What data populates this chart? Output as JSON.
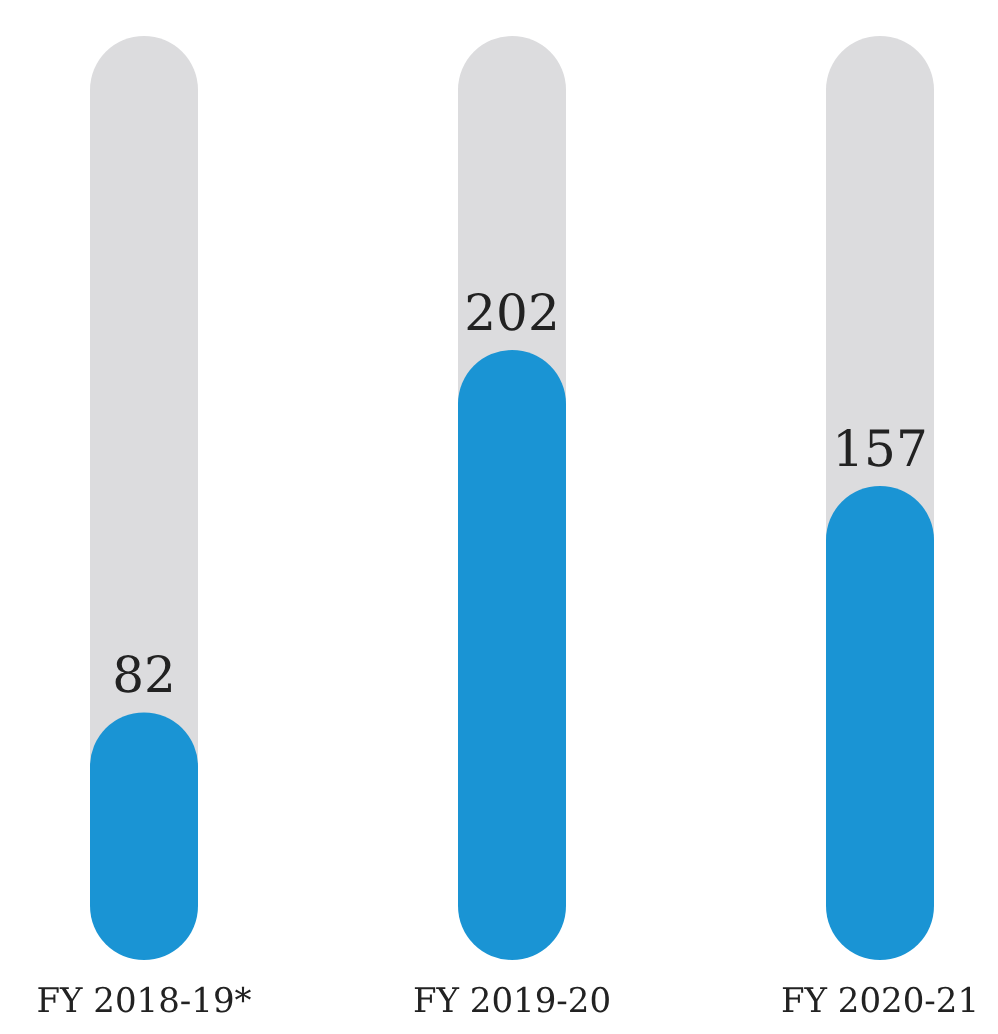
{
  "chart_data": {
    "type": "bar",
    "categories": [
      "FY 2018-19*",
      "FY 2019-20",
      "FY 2020-21"
    ],
    "values": [
      82,
      202,
      157
    ],
    "color": "#1a94d4",
    "data_labels": true
  }
}
